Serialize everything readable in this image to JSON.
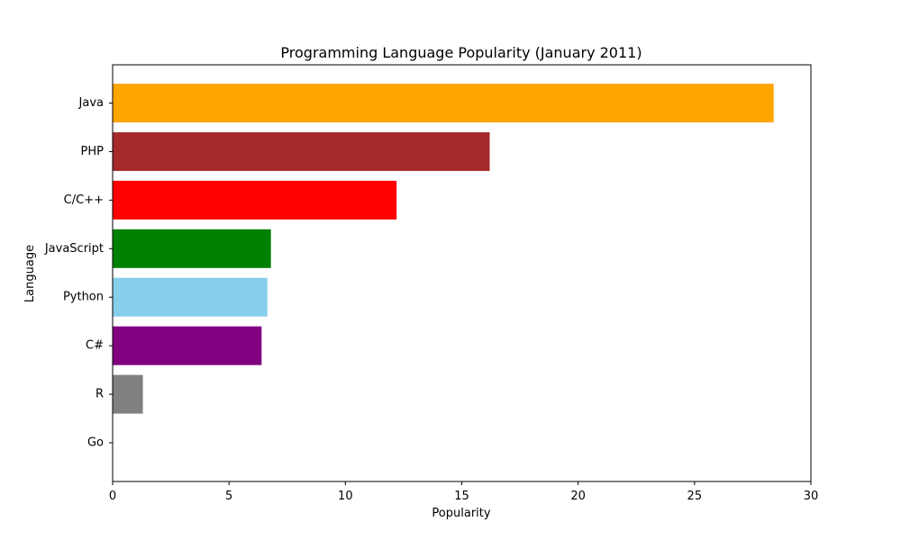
{
  "chart_data": {
    "type": "bar",
    "orientation": "horizontal",
    "title": "Programming Language Popularity (January 2011)",
    "xlabel": "Popularity",
    "ylabel": "Language",
    "categories": [
      "Java",
      "PHP",
      "C/C++",
      "JavaScript",
      "Python",
      "C#",
      "R",
      "Go"
    ],
    "values": [
      28.4,
      16.2,
      12.2,
      6.8,
      6.65,
      6.4,
      1.3,
      0.0
    ],
    "colors": [
      "#ffa500",
      "#a52a2a",
      "#ff0000",
      "#008000",
      "#87ceeb",
      "#800080",
      "#808080",
      "#000000"
    ],
    "xlim": [
      0,
      30
    ],
    "xticks": [
      0,
      5,
      10,
      15,
      20,
      25,
      30
    ],
    "grid": false,
    "legend": "none"
  }
}
